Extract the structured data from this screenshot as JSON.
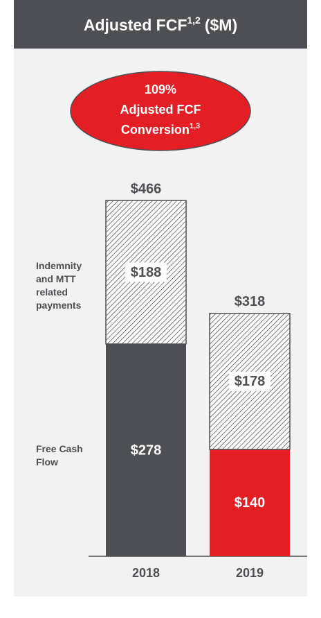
{
  "chart_data": {
    "type": "stacked_bar",
    "title": {
      "text": "Adjusted FCF",
      "sup": "1,2",
      "suffix": "($M)"
    },
    "callout": {
      "lines": [
        "109%",
        "Adjusted FCF",
        "Conversion"
      ],
      "sup": "1,3",
      "color": "#e31e24"
    },
    "categories": [
      "2018",
      "2019"
    ],
    "series": [
      {
        "name": "Free Cash Flow",
        "colors": [
          "#4d4f53",
          "#e31e24"
        ],
        "values": [
          278,
          140
        ],
        "value_labels": [
          "$278",
          "$140"
        ]
      },
      {
        "name": "Indemnity and MTT related payments",
        "pattern": "hatch",
        "color": "#4d4f53",
        "values": [
          188,
          178
        ],
        "value_labels": [
          "$188",
          "$178"
        ]
      }
    ],
    "totals": [
      466,
      318
    ],
    "total_labels": [
      "$466",
      "$318"
    ]
  }
}
